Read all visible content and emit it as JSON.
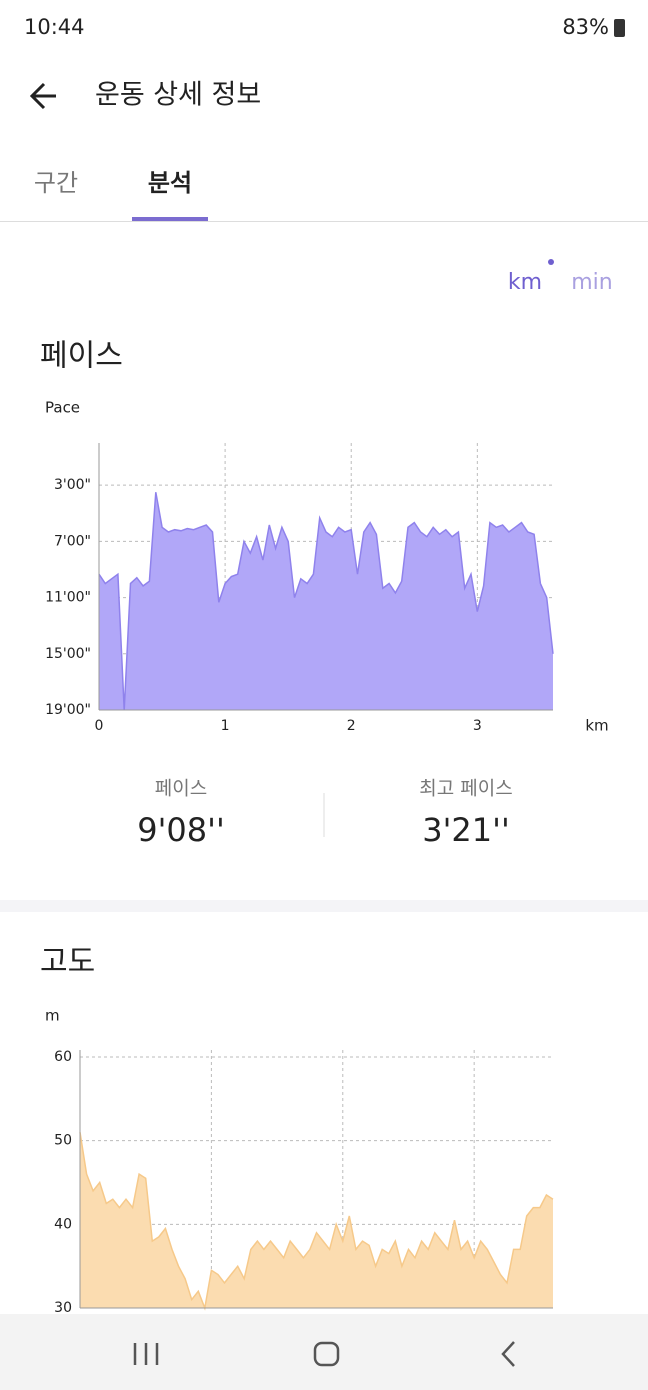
{
  "status_bar": {
    "time": "10:44",
    "battery": "83%"
  },
  "header": {
    "title": "운동 상세 정보"
  },
  "tabs": [
    "구간",
    "분석"
  ],
  "unit_toggle": [
    "km",
    "min"
  ],
  "pace_section": {
    "title": "페이스",
    "chart": {
      "type": "area",
      "y_label": "Pace",
      "x_unit": "km",
      "color": "#b1a7f8",
      "line_color": "#8f82ec",
      "x": [
        0,
        0.05,
        0.1,
        0.15,
        0.2,
        0.25,
        0.3,
        0.35,
        0.4,
        0.45,
        0.5,
        0.55,
        0.6,
        0.65,
        0.7,
        0.75,
        0.8,
        0.85,
        0.9,
        0.95,
        1,
        1.05,
        1.1,
        1.15,
        1.2,
        1.25,
        1.3,
        1.35,
        1.4,
        1.45,
        1.5,
        1.55,
        1.6,
        1.65,
        1.7,
        1.75,
        1.8,
        1.85,
        1.9,
        1.95,
        2,
        2.05,
        2.1,
        2.15,
        2.2,
        2.25,
        2.3,
        2.35,
        2.4,
        2.45,
        2.5,
        2.55,
        2.6,
        2.65,
        2.7,
        2.75,
        2.8,
        2.85,
        2.9,
        2.95,
        3,
        3.05,
        3.1,
        3.15,
        3.2,
        3.25,
        3.3,
        3.35,
        3.4,
        3.45,
        3.5,
        3.55,
        3.6
      ],
      "values": [
        560,
        600,
        580,
        560,
        1140,
        600,
        575,
        610,
        590,
        210,
        360,
        380,
        370,
        375,
        365,
        370,
        360,
        350,
        380,
        680,
        600,
        570,
        560,
        420,
        470,
        400,
        500,
        350,
        450,
        360,
        420,
        660,
        580,
        600,
        560,
        320,
        380,
        400,
        360,
        380,
        370,
        560,
        380,
        340,
        390,
        620,
        600,
        640,
        590,
        360,
        340,
        380,
        400,
        360,
        390,
        370,
        400,
        380,
        620,
        560,
        720,
        610,
        340,
        360,
        350,
        380,
        360,
        340,
        380,
        390,
        600,
        660,
        900
      ],
      "xlim": [
        0,
        3.6
      ],
      "ylim": [
        1140,
        0
      ],
      "xticks": [
        0,
        1,
        2,
        3
      ],
      "yticks": [
        {
          "value": 180,
          "label": "3'00\""
        },
        {
          "value": 420,
          "label": "7'00\""
        },
        {
          "value": 660,
          "label": "11'00\""
        },
        {
          "value": 900,
          "label": "15'00\""
        },
        {
          "value": 1140,
          "label": "19'00\""
        }
      ],
      "grid": true
    },
    "stats": [
      {
        "label": "페이스",
        "value": "9'08''"
      },
      {
        "label": "최고 페이스",
        "value": "3'21''"
      }
    ]
  },
  "altitude_section": {
    "title": "고도",
    "chart": {
      "type": "area",
      "y_label": "m",
      "color": "#fbdcb0",
      "line_color": "#f6c98a",
      "x": [
        0,
        0.05,
        0.1,
        0.15,
        0.2,
        0.25,
        0.3,
        0.35,
        0.4,
        0.45,
        0.5,
        0.55,
        0.6,
        0.65,
        0.7,
        0.75,
        0.8,
        0.85,
        0.9,
        0.95,
        1,
        1.05,
        1.1,
        1.15,
        1.2,
        1.25,
        1.3,
        1.35,
        1.4,
        1.45,
        1.5,
        1.55,
        1.6,
        1.65,
        1.7,
        1.75,
        1.8,
        1.85,
        1.9,
        1.95,
        2,
        2.05,
        2.1,
        2.15,
        2.2,
        2.25,
        2.3,
        2.35,
        2.4,
        2.45,
        2.5,
        2.55,
        2.6,
        2.65,
        2.7,
        2.75,
        2.8,
        2.85,
        2.9,
        2.95,
        3,
        3.05,
        3.1,
        3.15,
        3.2,
        3.25,
        3.3,
        3.35,
        3.4,
        3.45,
        3.5,
        3.55,
        3.6
      ],
      "values": [
        51,
        46,
        44,
        45,
        42.5,
        43,
        42,
        43,
        42,
        46,
        45.5,
        38,
        38.5,
        39.5,
        37,
        35,
        33.5,
        31,
        32,
        30,
        34.5,
        34,
        33,
        34,
        35,
        33.5,
        37,
        38,
        37,
        38,
        37,
        36,
        38,
        37,
        36,
        37,
        39,
        38,
        37,
        40,
        38,
        41,
        37,
        38,
        37.5,
        35,
        37,
        36.5,
        38,
        35,
        37,
        36,
        38,
        37,
        39,
        38,
        37,
        40.5,
        37,
        38,
        36,
        38,
        37,
        35.5,
        34,
        33,
        37,
        37,
        41,
        42,
        42,
        43.5,
        43
      ],
      "xlim": [
        0,
        3.6
      ],
      "ylim": [
        30,
        60
      ],
      "yticks": [
        30,
        40,
        50,
        60
      ],
      "grid": true
    }
  }
}
